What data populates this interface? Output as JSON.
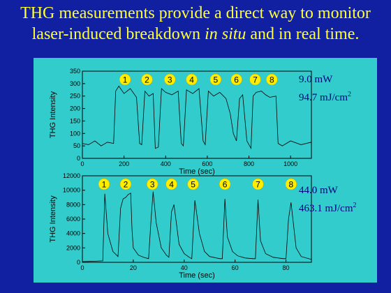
{
  "slide": {
    "title_line1": "THG measurements provide a direct way to monitor",
    "title_line2_a": "laser-induced breakdown ",
    "title_line2_em": "in situ",
    "title_line2_b": " and in real time.",
    "colors": {
      "background": "#1020a0",
      "title": "#ffff33",
      "panel": "#33cccc",
      "annotation": "#000080",
      "marker": "#ffee00"
    }
  },
  "chart_data": [
    {
      "type": "line",
      "xlabel": "Time (sec)",
      "ylabel": "THG Intensity",
      "xlim": [
        0,
        1100
      ],
      "ylim": [
        0,
        350
      ],
      "xticks": [
        0,
        200,
        400,
        600,
        800,
        1000
      ],
      "yticks": [
        0,
        50,
        100,
        150,
        200,
        250,
        300,
        350
      ],
      "grid": false,
      "annotation_power": "9.0 mW",
      "annotation_fluence": "94.7 mJ/cm",
      "annotation_fluence_exp": "2",
      "markers": [
        {
          "label": "1",
          "x": 205
        },
        {
          "label": "2",
          "x": 310
        },
        {
          "label": "3",
          "x": 420
        },
        {
          "label": "4",
          "x": 525
        },
        {
          "label": "5",
          "x": 640
        },
        {
          "label": "6",
          "x": 740
        },
        {
          "label": "7",
          "x": 830
        },
        {
          "label": "8",
          "x": 910
        }
      ],
      "series": [
        {
          "x": [
            0,
            30,
            60,
            90,
            120,
            150,
            160,
            175,
            200,
            230,
            260,
            275,
            285,
            300,
            320,
            340,
            350,
            365,
            380,
            400,
            430,
            460,
            475,
            485,
            500,
            530,
            560,
            580,
            590,
            605,
            630,
            660,
            690,
            710,
            725,
            740,
            755,
            770,
            790,
            810,
            820,
            835,
            860,
            880,
            900,
            930,
            940,
            960,
            1000,
            1050,
            1100
          ],
          "y": [
            60,
            55,
            70,
            50,
            65,
            60,
            270,
            290,
            260,
            280,
            245,
            60,
            55,
            270,
            250,
            260,
            40,
            45,
            280,
            265,
            255,
            270,
            60,
            50,
            275,
            260,
            280,
            70,
            55,
            270,
            250,
            265,
            240,
            180,
            100,
            70,
            240,
            255,
            70,
            40,
            250,
            265,
            270,
            255,
            245,
            250,
            60,
            50,
            70,
            55,
            65
          ]
        }
      ]
    },
    {
      "type": "line",
      "xlabel": "Time (sec)",
      "ylabel": "THG Intensity",
      "xlim": [
        0,
        90
      ],
      "ylim": [
        0,
        12000
      ],
      "xticks": [
        0,
        20,
        40,
        60,
        80
      ],
      "yticks": [
        0,
        2000,
        4000,
        6000,
        8000,
        10000,
        12000
      ],
      "grid": false,
      "annotation_power": "44.0 mW",
      "annotation_fluence": "463.1 mJ/cm",
      "annotation_fluence_exp": "2",
      "markers": [
        {
          "label": "1",
          "x": 8.5
        },
        {
          "label": "2",
          "x": 17
        },
        {
          "label": "3",
          "x": 27.5
        },
        {
          "label": "4",
          "x": 35
        },
        {
          "label": "5",
          "x": 43.5
        },
        {
          "label": "6",
          "x": 56
        },
        {
          "label": "7",
          "x": 69
        },
        {
          "label": "8",
          "x": 82
        }
      ],
      "series": [
        {
          "x": [
            0,
            5,
            8,
            8.8,
            10,
            12,
            14,
            15,
            16,
            17,
            18,
            19,
            19.5,
            20,
            22,
            24,
            26,
            27,
            27.8,
            29,
            31,
            33,
            34,
            35,
            36,
            38,
            40,
            42,
            43,
            44.2,
            46,
            48,
            50,
            54,
            55,
            56,
            57,
            59,
            61,
            64,
            67,
            68,
            69,
            70,
            72,
            75,
            79,
            80,
            81,
            82,
            84,
            86,
            90
          ],
          "y": [
            100,
            150,
            200,
            9500,
            4000,
            1500,
            800,
            7500,
            8800,
            9000,
            9400,
            9600,
            4500,
            2000,
            1000,
            700,
            500,
            6000,
            9800,
            5500,
            2000,
            1000,
            700,
            7000,
            8000,
            2500,
            1200,
            700,
            500,
            8600,
            4000,
            1500,
            800,
            500,
            500,
            8800,
            3500,
            1500,
            900,
            600,
            500,
            500,
            8700,
            3000,
            1200,
            700,
            500,
            500,
            6000,
            8300,
            2000,
            800,
            400
          ]
        }
      ]
    }
  ]
}
